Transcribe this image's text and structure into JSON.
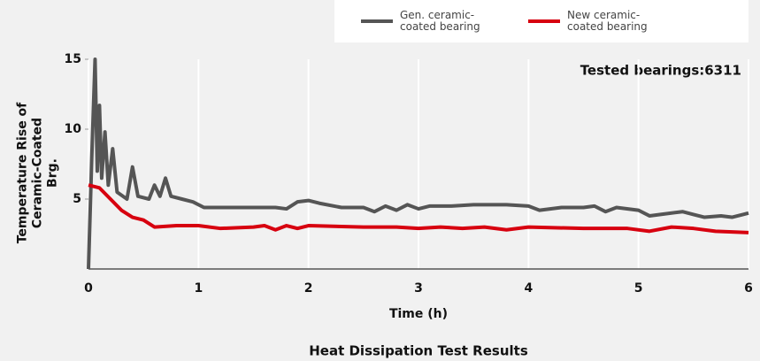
{
  "chart_data": {
    "type": "line",
    "title": "Heat Dissipation Test Results",
    "xlabel": "Time (h)",
    "ylabel": "Temperature Rise of Ceramic-Coated Brg.",
    "annotation": "Tested bearings:6311",
    "xlim": [
      0,
      6
    ],
    "xticks": [
      0,
      1,
      2,
      3,
      4,
      5,
      6
    ],
    "ylim": [
      0,
      15
    ],
    "yticks": [
      5,
      10,
      15
    ],
    "grid": true,
    "series": [
      {
        "name": "Gen. ceramic-coated bearing",
        "color": "#555555",
        "x": [
          0,
          0.03,
          0.06,
          0.08,
          0.1,
          0.12,
          0.15,
          0.18,
          0.22,
          0.26,
          0.35,
          0.4,
          0.45,
          0.55,
          0.6,
          0.65,
          0.7,
          0.75,
          0.85,
          0.95,
          1.05,
          1.3,
          1.5,
          1.7,
          1.8,
          1.9,
          2.0,
          2.1,
          2.3,
          2.5,
          2.6,
          2.7,
          2.8,
          2.9,
          3.0,
          3.1,
          3.3,
          3.5,
          3.8,
          4.0,
          4.1,
          4.3,
          4.5,
          4.6,
          4.7,
          4.8,
          5.0,
          5.1,
          5.2,
          5.4,
          5.5,
          5.6,
          5.75,
          5.85,
          5.95,
          6.0
        ],
        "values": [
          0,
          8,
          15,
          7,
          11.7,
          6.5,
          9.8,
          6,
          8.6,
          5.5,
          5,
          7.3,
          5.2,
          5,
          6,
          5.2,
          6.5,
          5.2,
          5,
          4.8,
          4.4,
          4.4,
          4.4,
          4.4,
          4.3,
          4.8,
          4.9,
          4.7,
          4.4,
          4.4,
          4.1,
          4.5,
          4.2,
          4.6,
          4.3,
          4.5,
          4.5,
          4.6,
          4.6,
          4.5,
          4.2,
          4.4,
          4.4,
          4.5,
          4.1,
          4.4,
          4.2,
          3.8,
          3.9,
          4.1,
          3.9,
          3.7,
          3.8,
          3.7,
          3.9,
          4.0
        ]
      },
      {
        "name": "New ceramic-coated bearing",
        "color": "#d7000f",
        "x": [
          0,
          0.1,
          0.2,
          0.3,
          0.4,
          0.5,
          0.6,
          0.8,
          1.0,
          1.2,
          1.5,
          1.6,
          1.7,
          1.8,
          1.9,
          2.0,
          2.5,
          2.8,
          3.0,
          3.2,
          3.4,
          3.6,
          3.8,
          4.0,
          4.5,
          4.9,
          5.1,
          5.3,
          5.5,
          5.7,
          6.0
        ],
        "values": [
          6,
          5.8,
          5,
          4.2,
          3.7,
          3.5,
          3,
          3.1,
          3.1,
          2.9,
          3.0,
          3.1,
          2.8,
          3.1,
          2.9,
          3.1,
          3.0,
          3.0,
          2.9,
          3.0,
          2.9,
          3.0,
          2.8,
          3.0,
          2.9,
          2.9,
          2.7,
          3.0,
          2.9,
          2.7,
          2.6
        ]
      }
    ]
  }
}
